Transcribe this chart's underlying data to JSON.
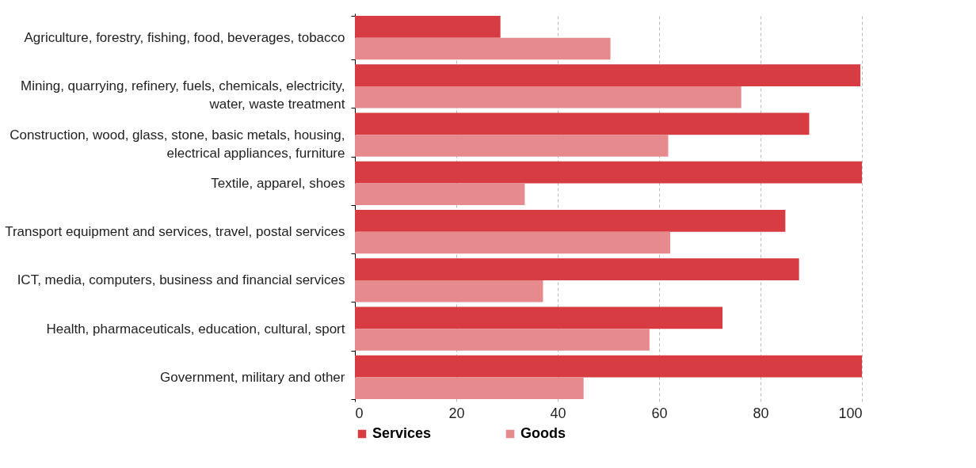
{
  "chart_data": {
    "type": "bar",
    "orientation": "horizontal",
    "categories": [
      "Agriculture, forestry, fishing, food, beverages, tobacco",
      "Mining, quarrying, refinery, fuels, chemicals, electricity, water, waste treatment",
      "Construction, wood, glass, stone, basic metals, housing, electrical appliances, furniture",
      "Textile, apparel, shoes",
      "Transport equipment and services, travel, postal services",
      "ICT, media, computers, business and financial services",
      "Health, pharmaceuticals, education, cultural, sport",
      "Government, military and other"
    ],
    "series": [
      {
        "name": "Services",
        "color": "#d63c41",
        "values": [
          28.7,
          99.7,
          89.6,
          100,
          84.9,
          87.6,
          72.5,
          100
        ]
      },
      {
        "name": "Goods",
        "color": "#e68a8d",
        "values": [
          50.4,
          76.2,
          61.8,
          33.5,
          62.2,
          37.1,
          58.1,
          45.1
        ]
      }
    ],
    "xlim": [
      0,
      100
    ],
    "xticks": [
      0,
      20,
      40,
      60,
      80,
      100
    ],
    "grid": "x",
    "legend": "bottom"
  }
}
